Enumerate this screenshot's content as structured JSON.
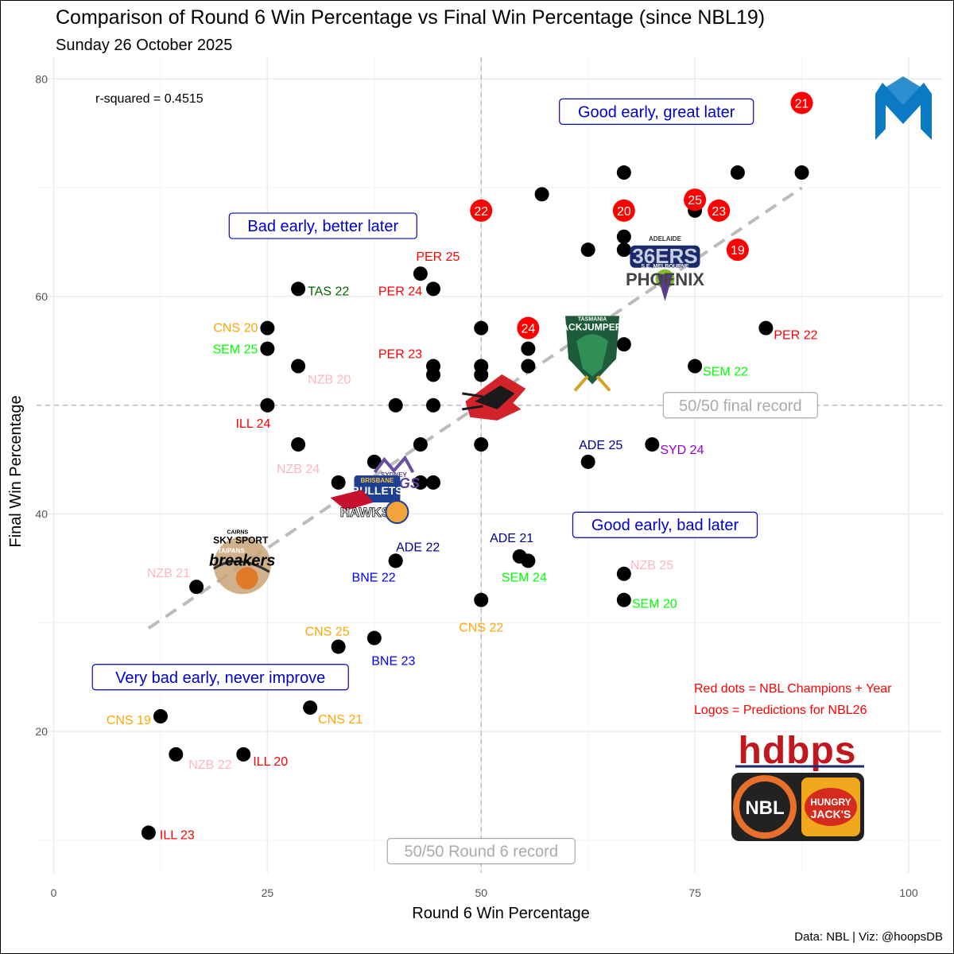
{
  "title": "Comparison of Round 6 Win Percentage vs Final Win Percentage (since NBL19)",
  "subtitle": "Sunday 26 October 2025",
  "caption": "Data: NBL | Viz: @hoopsDB",
  "chart_data": {
    "type": "scatter",
    "xlabel": "Round 6 Win Percentage",
    "ylabel": "Final Win Percentage",
    "xlim": [
      -2,
      104
    ],
    "ylim": [
      7,
      82
    ],
    "x_ticks": [
      0,
      25,
      50,
      75,
      100
    ],
    "y_ticks": [
      20,
      40,
      60,
      80
    ],
    "grid": true,
    "r_squared_label": "r-squared = 0.4515",
    "trend_line": {
      "x": [
        11.1,
        87.5
      ],
      "y": [
        29.5,
        70.0
      ]
    },
    "reference_lines": {
      "x": 50,
      "y": 50,
      "x_label": "50/50 Round 6 record",
      "y_label": "50/50 final record"
    },
    "quadrant_labels": [
      {
        "text": "Good early, great later",
        "x": 70.5,
        "y": 77.0
      },
      {
        "text": "Bad early, better later",
        "x": 31.5,
        "y": 66.5
      },
      {
        "text": "Good early, bad later",
        "x": 71.5,
        "y": 39.0
      },
      {
        "text": "Very bad early, never improve",
        "x": 19.5,
        "y": 25.0
      }
    ],
    "points": [
      {
        "x": 11.1,
        "y": 10.7,
        "label": "ILL 23",
        "color": "#ff0000"
      },
      {
        "x": 12.5,
        "y": 21.4,
        "label": "CNS 19",
        "color": "#ffa500"
      },
      {
        "x": 14.3,
        "y": 17.9,
        "label": "NZB 22",
        "color": "#ffb6c1"
      },
      {
        "x": 22.2,
        "y": 17.9,
        "label": "ILL 20",
        "color": "#ff0000"
      },
      {
        "x": 16.7,
        "y": 33.3,
        "label": "NZB 21",
        "color": "#ffb6c1"
      },
      {
        "x": 30.0,
        "y": 22.2,
        "label": "CNS 21",
        "color": "#ffa500"
      },
      {
        "x": 33.3,
        "y": 27.8,
        "label": "CNS 25",
        "color": "#ffa500"
      },
      {
        "x": 37.5,
        "y": 28.6,
        "label": "BNE 23",
        "color": "#0000ff"
      },
      {
        "x": 50.0,
        "y": 32.1,
        "label": "CNS 22",
        "color": "#ffa500"
      },
      {
        "x": 40.0,
        "y": 35.7,
        "label": "ADE 22",
        "color": "#00008b"
      },
      {
        "x": 40.0,
        "y": 35.7,
        "label": "BNE 22",
        "color": "#0000ff"
      },
      {
        "x": 54.5,
        "y": 36.1,
        "label": "ADE 21",
        "color": "#00008b"
      },
      {
        "x": 55.5,
        "y": 35.7,
        "label": "SEM 24",
        "color": "#00ff00"
      },
      {
        "x": 66.7,
        "y": 34.5,
        "label": "NZB 25",
        "color": "#ffb6c1"
      },
      {
        "x": 66.7,
        "y": 32.1,
        "label": "SEM 20",
        "color": "#00ff00"
      },
      {
        "x": 28.6,
        "y": 46.4,
        "label": "NZB 24",
        "color": "#ffb6c1"
      },
      {
        "x": 25.0,
        "y": 50.0,
        "label": "ILL 24",
        "color": "#ff0000"
      },
      {
        "x": 28.6,
        "y": 53.6,
        "label": "NZB 20",
        "color": "#ffb6c1"
      },
      {
        "x": 25.0,
        "y": 55.2,
        "label": "SEM 25",
        "color": "#00ff00"
      },
      {
        "x": 25.0,
        "y": 57.1,
        "label": "CNS 20",
        "color": "#ffa500"
      },
      {
        "x": 28.6,
        "y": 60.7,
        "label": "TAS 22",
        "color": "#006400"
      },
      {
        "x": 44.4,
        "y": 53.6,
        "label": "PER 23",
        "color": "#ff0000"
      },
      {
        "x": 44.4,
        "y": 60.7,
        "label": "PER 24",
        "color": "#ff0000"
      },
      {
        "x": 42.9,
        "y": 62.1,
        "label": "PER 25",
        "color": "#ff0000"
      },
      {
        "x": 62.5,
        "y": 44.8,
        "label": "ADE 25",
        "color": "#00008b"
      },
      {
        "x": 70.0,
        "y": 46.4,
        "label": "SYD 24",
        "color": "#9400d3"
      },
      {
        "x": 75.0,
        "y": 53.6,
        "label": "SEM 22",
        "color": "#00ff00"
      },
      {
        "x": 83.3,
        "y": 57.1,
        "label": "PER 22",
        "color": "#ff0000"
      },
      {
        "x": 33.3,
        "y": 42.9,
        "label": "",
        "color": ""
      },
      {
        "x": 37.5,
        "y": 44.8,
        "label": "",
        "color": ""
      },
      {
        "x": 42.9,
        "y": 42.9,
        "label": "",
        "color": ""
      },
      {
        "x": 44.4,
        "y": 42.9,
        "label": "",
        "color": ""
      },
      {
        "x": 42.9,
        "y": 46.4,
        "label": "",
        "color": ""
      },
      {
        "x": 50.0,
        "y": 46.4,
        "label": "",
        "color": ""
      },
      {
        "x": 40.0,
        "y": 50.0,
        "label": "",
        "color": ""
      },
      {
        "x": 44.4,
        "y": 50.0,
        "label": "",
        "color": ""
      },
      {
        "x": 44.4,
        "y": 52.8,
        "label": "",
        "color": ""
      },
      {
        "x": 50.0,
        "y": 52.8,
        "label": "",
        "color": ""
      },
      {
        "x": 50.0,
        "y": 53.6,
        "label": "",
        "color": ""
      },
      {
        "x": 50.0,
        "y": 57.1,
        "label": "",
        "color": ""
      },
      {
        "x": 55.5,
        "y": 53.6,
        "label": "",
        "color": ""
      },
      {
        "x": 55.5,
        "y": 55.2,
        "label": "",
        "color": ""
      },
      {
        "x": 66.7,
        "y": 55.6,
        "label": "",
        "color": ""
      },
      {
        "x": 57.1,
        "y": 69.4,
        "label": "",
        "color": ""
      },
      {
        "x": 62.5,
        "y": 64.3,
        "label": "",
        "color": ""
      },
      {
        "x": 66.7,
        "y": 64.3,
        "label": "",
        "color": ""
      },
      {
        "x": 66.7,
        "y": 65.5,
        "label": "",
        "color": ""
      },
      {
        "x": 66.7,
        "y": 71.4,
        "label": "",
        "color": ""
      },
      {
        "x": 75.0,
        "y": 67.9,
        "label": "",
        "color": ""
      },
      {
        "x": 80.0,
        "y": 71.4,
        "label": "",
        "color": ""
      },
      {
        "x": 87.5,
        "y": 71.4,
        "label": "",
        "color": ""
      }
    ],
    "champions": [
      {
        "x": 87.5,
        "y": 77.8,
        "year": "21"
      },
      {
        "x": 50.0,
        "y": 67.9,
        "year": "22"
      },
      {
        "x": 66.7,
        "y": 67.9,
        "year": "20"
      },
      {
        "x": 75.0,
        "y": 68.9,
        "year": "25"
      },
      {
        "x": 77.8,
        "y": 67.9,
        "year": "23"
      },
      {
        "x": 80.0,
        "y": 64.3,
        "year": "19"
      },
      {
        "x": 55.5,
        "y": 57.1,
        "year": "24"
      }
    ],
    "notes": [
      "Red dots = NBL Champions + Year",
      "Logos = Predictions for NBL26"
    ],
    "logos": [
      {
        "name": "adelaide-melbourne",
        "x": 71.5,
        "y": 62.5,
        "line1": "ADELAIDE",
        "line2": "36ERS",
        "line3": "S.E. MELBOURNE",
        "line4": "PHOENIX"
      },
      {
        "name": "tasmania",
        "x": 63.0,
        "y": 55.0,
        "line1": "TASMANIA",
        "line2": "JACKJUMPERS"
      },
      {
        "name": "illawarra",
        "x": 51.5,
        "y": 50.5
      },
      {
        "name": "brisbane-sydney",
        "x": 37.0,
        "y": 41.5,
        "line1": "BRISBANE",
        "line2": "BULLETS",
        "line3": "SYDNEY",
        "line4": "KINGS",
        "line5": "HAWKS"
      },
      {
        "name": "cairns-nz",
        "x": 21.5,
        "y": 36.0,
        "line1": "CAIRNS",
        "line2": "SKY SPORT",
        "line3": "TAIPANS",
        "line4": "breakers"
      }
    ],
    "brand_text": {
      "hdbps": "hdbps",
      "nbl": "NBL",
      "hungry": "HUNGRY",
      "jacks": "JACK'S"
    }
  }
}
